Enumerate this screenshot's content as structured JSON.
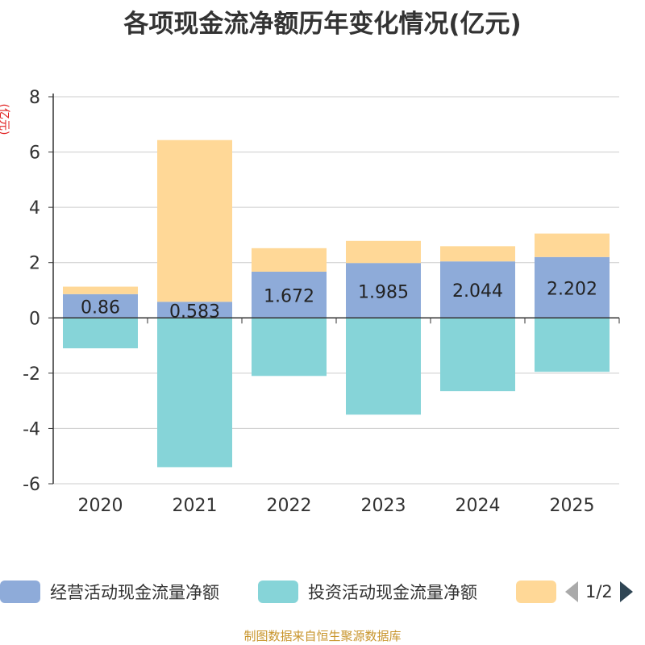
{
  "chart_data": {
    "type": "bar",
    "stacked": true,
    "title": "各项现金流净额历年变化情况(亿元)",
    "ylabel": "(亿元)",
    "xlabel": "",
    "ylim": [
      -6,
      8
    ],
    "yticks": [
      -6,
      -4,
      -2,
      0,
      2,
      4,
      6,
      8
    ],
    "grid": true,
    "categories": [
      "2020",
      "2021",
      "2022",
      "2023",
      "2024",
      "2025"
    ],
    "series": [
      {
        "name": "经营活动现金流量净额",
        "color": "#8eabd9",
        "values": [
          0.86,
          0.583,
          1.672,
          1.985,
          2.044,
          2.202
        ],
        "labels": [
          "0.86",
          "0.583",
          "1.672",
          "1.985",
          "2.044",
          "2.202"
        ]
      },
      {
        "name": "投资活动现金流量净额",
        "color": "#86d4d8",
        "values": [
          -1.1,
          -5.4,
          -2.1,
          -3.5,
          -2.65,
          -1.95
        ]
      },
      {
        "name": "",
        "color": "#ffd897",
        "values": [
          0.27,
          5.85,
          0.85,
          0.8,
          0.55,
          0.85
        ]
      }
    ]
  },
  "legend": {
    "items": [
      {
        "label": "经营活动现金流量净额",
        "color": "#8eabd9"
      },
      {
        "label": "投资活动现金流量净额",
        "color": "#86d4d8"
      },
      {
        "label": "",
        "color": "#ffd897"
      }
    ],
    "page": "1/2"
  },
  "footer": "制图数据来自恒生聚源数据库"
}
